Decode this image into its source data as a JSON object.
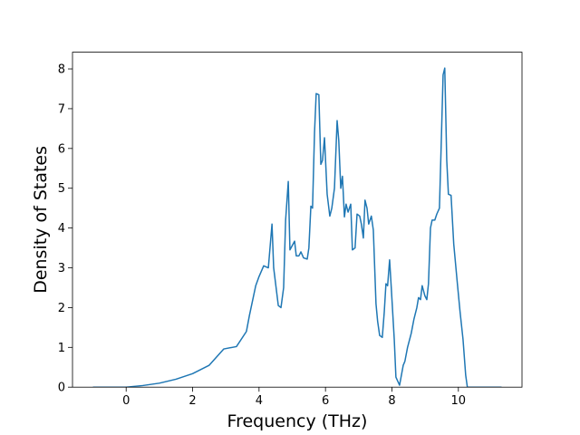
{
  "chart_data": {
    "type": "line",
    "xlabel": "Frequency (THz)",
    "ylabel": "Density of States",
    "x": [
      -1,
      0,
      0.5,
      1,
      1.5,
      2,
      2.5,
      2.94,
      3.32,
      3.62,
      3.71,
      3.9,
      4.0,
      4.14,
      4.28,
      4.39,
      4.44,
      4.58,
      4.66,
      4.74,
      4.8,
      4.88,
      4.93,
      5.07,
      5.12,
      5.2,
      5.26,
      5.34,
      5.45,
      5.5,
      5.56,
      5.61,
      5.67,
      5.72,
      5.8,
      5.86,
      5.91,
      5.97,
      6.05,
      6.13,
      6.19,
      6.27,
      6.35,
      6.4,
      6.46,
      6.51,
      6.57,
      6.62,
      6.68,
      6.76,
      6.81,
      6.89,
      6.95,
      7.03,
      7.08,
      7.14,
      7.19,
      7.25,
      7.3,
      7.38,
      7.44,
      7.52,
      7.57,
      7.63,
      7.71,
      7.77,
      7.82,
      7.87,
      7.93,
      7.98,
      8.07,
      8.12,
      8.23,
      8.34,
      8.39,
      8.47,
      8.58,
      8.66,
      8.75,
      8.8,
      8.86,
      8.91,
      8.99,
      9.05,
      9.1,
      9.16,
      9.21,
      9.29,
      9.35,
      9.43,
      9.48,
      9.54,
      9.59,
      9.65,
      9.7,
      9.78,
      9.86,
      9.97,
      10.05,
      10.14,
      10.22,
      10.27,
      11.3
    ],
    "series": [
      {
        "name": "DOS",
        "color": "#1f77b4",
        "values": [
          0,
          0,
          0.04,
          0.1,
          0.2,
          0.34,
          0.55,
          0.96,
          1.02,
          1.4,
          1.8,
          2.55,
          2.78,
          3.05,
          3.0,
          4.1,
          3.0,
          2.05,
          2.0,
          2.5,
          4.2,
          5.17,
          3.45,
          3.67,
          3.3,
          3.3,
          3.4,
          3.25,
          3.22,
          3.5,
          4.55,
          4.5,
          6.4,
          7.38,
          7.35,
          5.6,
          5.7,
          6.27,
          4.85,
          4.3,
          4.5,
          5.0,
          6.7,
          6.2,
          5.0,
          5.3,
          4.28,
          4.6,
          4.4,
          4.6,
          3.45,
          3.5,
          4.35,
          4.3,
          4.1,
          3.75,
          4.7,
          4.5,
          4.1,
          4.3,
          3.95,
          2.1,
          1.65,
          1.3,
          1.25,
          1.9,
          2.6,
          2.55,
          3.2,
          2.5,
          1.2,
          0.25,
          0.05,
          0.55,
          0.65,
          1.0,
          1.35,
          1.7,
          2.0,
          2.25,
          2.2,
          2.55,
          2.3,
          2.2,
          2.6,
          4.0,
          4.2,
          4.2,
          4.35,
          4.5,
          6.0,
          7.85,
          8.02,
          5.7,
          4.85,
          4.82,
          3.6,
          2.6,
          1.9,
          1.2,
          0.3,
          0,
          0
        ]
      }
    ],
    "xlim": [
      -1.615,
      11.915
    ],
    "xticks": [
      0,
      2,
      4,
      6,
      8,
      10
    ],
    "ylim": [
      0,
      8.42
    ],
    "yticks": [
      0,
      1,
      2,
      3,
      4,
      5,
      6,
      7,
      8
    ]
  }
}
